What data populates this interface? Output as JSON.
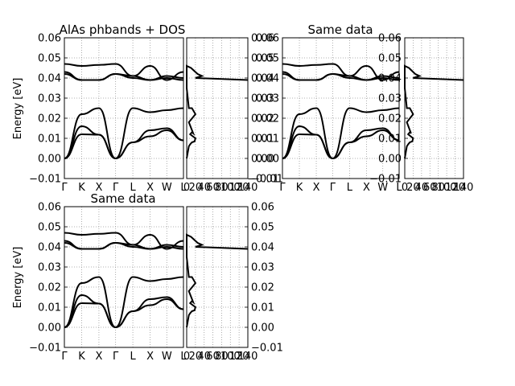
{
  "figure": {
    "ylabel": "Energy [eV]",
    "yticks": [
      "0.06",
      "0.05",
      "0.04",
      "0.03",
      "0.02",
      "0.01",
      "0.00",
      "−0.01"
    ],
    "kpath": [
      "Γ",
      "K",
      "X",
      "Γ",
      "L",
      "X",
      "W",
      "L"
    ],
    "dos_xticks": [
      "0",
      "20",
      "40",
      "60",
      "80",
      "100",
      "120",
      "140"
    ]
  },
  "chart_data": [
    {
      "type": "line",
      "title": "AlAs phbands + DOS",
      "xlabel": "",
      "ylabel": "Energy [eV]",
      "ylim": [
        -0.01,
        0.06
      ],
      "grid": true,
      "x_tick_labels": [
        "Γ",
        "K",
        "X",
        "Γ",
        "L",
        "X",
        "W",
        "L"
      ],
      "series": [
        {
          "values": [
            0.0,
            0.012,
            0.0118,
            0.0,
            0.008,
            0.011,
            0.014,
            0.009
          ]
        },
        {
          "values": [
            0.0,
            0.016,
            0.0118,
            0.0,
            0.008,
            0.014,
            0.015,
            0.009
          ]
        },
        {
          "values": [
            0.0,
            0.022,
            0.025,
            0.0,
            0.025,
            0.023,
            0.024,
            0.025
          ]
        },
        {
          "values": [
            0.047,
            0.046,
            0.0465,
            0.047,
            0.041,
            0.046,
            0.039,
            0.043
          ]
        },
        {
          "values": [
            0.043,
            0.039,
            0.039,
            0.042,
            0.041,
            0.039,
            0.041,
            0.04
          ]
        },
        {
          "values": [
            0.042,
            0.039,
            0.039,
            0.042,
            0.04,
            0.039,
            0.04,
            0.039
          ]
        }
      ]
    },
    {
      "type": "line",
      "title": "",
      "xlabel": "",
      "ylabel": "",
      "xlim": [
        0,
        140
      ],
      "ylim": [
        -0.01,
        0.06
      ],
      "grid": true,
      "x_tick_labels": [
        "0",
        "20",
        "40",
        "60",
        "80",
        "100",
        "120",
        "140"
      ],
      "points": [
        [
          0,
          0.0
        ],
        [
          5,
          0.006
        ],
        [
          8,
          0.007
        ],
        [
          12,
          0.008
        ],
        [
          18,
          0.0085
        ],
        [
          20,
          0.01
        ],
        [
          8,
          0.012
        ],
        [
          12,
          0.013
        ],
        [
          15,
          0.0125
        ],
        [
          5,
          0.018
        ],
        [
          20,
          0.022
        ],
        [
          12,
          0.025
        ],
        [
          5,
          0.025
        ],
        [
          0,
          0.035
        ],
        [
          0,
          0.046
        ],
        [
          10,
          0.045
        ],
        [
          25,
          0.042
        ],
        [
          35,
          0.041
        ],
        [
          20,
          0.04
        ],
        [
          140,
          0.039
        ]
      ]
    },
    {
      "type": "line",
      "title": "Same data",
      "xlabel": "",
      "ylabel": "",
      "ylim": [
        -0.01,
        0.06
      ],
      "grid": true,
      "x_tick_labels": [
        "Γ",
        "K",
        "X",
        "Γ",
        "L",
        "X",
        "W",
        "L"
      ],
      "series": [
        {
          "values": [
            0.0,
            0.012,
            0.0118,
            0.0,
            0.008,
            0.011,
            0.014,
            0.009
          ]
        },
        {
          "values": [
            0.0,
            0.016,
            0.0118,
            0.0,
            0.008,
            0.014,
            0.015,
            0.009
          ]
        },
        {
          "values": [
            0.0,
            0.022,
            0.025,
            0.0,
            0.025,
            0.023,
            0.024,
            0.025
          ]
        },
        {
          "values": [
            0.047,
            0.046,
            0.0465,
            0.047,
            0.041,
            0.046,
            0.039,
            0.043
          ]
        },
        {
          "values": [
            0.043,
            0.039,
            0.039,
            0.042,
            0.041,
            0.039,
            0.041,
            0.04
          ]
        },
        {
          "values": [
            0.042,
            0.039,
            0.039,
            0.042,
            0.04,
            0.039,
            0.04,
            0.039
          ]
        }
      ]
    },
    {
      "type": "line",
      "title": "",
      "xlabel": "",
      "ylabel": "",
      "xlim": [
        0,
        140
      ],
      "ylim": [
        -0.01,
        0.06
      ],
      "grid": true,
      "x_tick_labels": [
        "0",
        "20",
        "40",
        "60",
        "80",
        "100",
        "120",
        "140"
      ],
      "points": [
        [
          0,
          0.0
        ],
        [
          5,
          0.006
        ],
        [
          8,
          0.007
        ],
        [
          12,
          0.008
        ],
        [
          18,
          0.0085
        ],
        [
          20,
          0.01
        ],
        [
          8,
          0.012
        ],
        [
          12,
          0.013
        ],
        [
          15,
          0.0125
        ],
        [
          5,
          0.018
        ],
        [
          20,
          0.022
        ],
        [
          12,
          0.025
        ],
        [
          5,
          0.025
        ],
        [
          0,
          0.035
        ],
        [
          0,
          0.046
        ],
        [
          10,
          0.045
        ],
        [
          25,
          0.042
        ],
        [
          35,
          0.041
        ],
        [
          20,
          0.04
        ],
        [
          140,
          0.039
        ]
      ]
    },
    {
      "type": "line",
      "title": "Same data",
      "xlabel": "",
      "ylabel": "Energy [eV]",
      "ylim": [
        -0.01,
        0.06
      ],
      "grid": true,
      "x_tick_labels": [
        "Γ",
        "K",
        "X",
        "Γ",
        "L",
        "X",
        "W",
        "L"
      ],
      "series": [
        {
          "values": [
            0.0,
            0.012,
            0.0118,
            0.0,
            0.008,
            0.011,
            0.014,
            0.009
          ]
        },
        {
          "values": [
            0.0,
            0.016,
            0.0118,
            0.0,
            0.008,
            0.014,
            0.015,
            0.009
          ]
        },
        {
          "values": [
            0.0,
            0.022,
            0.025,
            0.0,
            0.025,
            0.023,
            0.024,
            0.025
          ]
        },
        {
          "values": [
            0.047,
            0.046,
            0.0465,
            0.047,
            0.041,
            0.046,
            0.039,
            0.043
          ]
        },
        {
          "values": [
            0.043,
            0.039,
            0.039,
            0.042,
            0.041,
            0.039,
            0.041,
            0.04
          ]
        },
        {
          "values": [
            0.042,
            0.039,
            0.039,
            0.042,
            0.04,
            0.039,
            0.04,
            0.039
          ]
        }
      ]
    },
    {
      "type": "line",
      "title": "",
      "xlabel": "",
      "ylabel": "",
      "xlim": [
        0,
        140
      ],
      "ylim": [
        -0.01,
        0.06
      ],
      "grid": true,
      "x_tick_labels": [
        "0",
        "20",
        "40",
        "60",
        "80",
        "100",
        "120",
        "140"
      ],
      "points": [
        [
          0,
          0.0
        ],
        [
          5,
          0.006
        ],
        [
          8,
          0.007
        ],
        [
          12,
          0.008
        ],
        [
          18,
          0.0085
        ],
        [
          20,
          0.01
        ],
        [
          8,
          0.012
        ],
        [
          12,
          0.013
        ],
        [
          15,
          0.0125
        ],
        [
          5,
          0.018
        ],
        [
          20,
          0.022
        ],
        [
          12,
          0.025
        ],
        [
          5,
          0.025
        ],
        [
          0,
          0.035
        ],
        [
          0,
          0.046
        ],
        [
          10,
          0.045
        ],
        [
          25,
          0.042
        ],
        [
          35,
          0.041
        ],
        [
          20,
          0.04
        ],
        [
          140,
          0.039
        ]
      ]
    }
  ]
}
